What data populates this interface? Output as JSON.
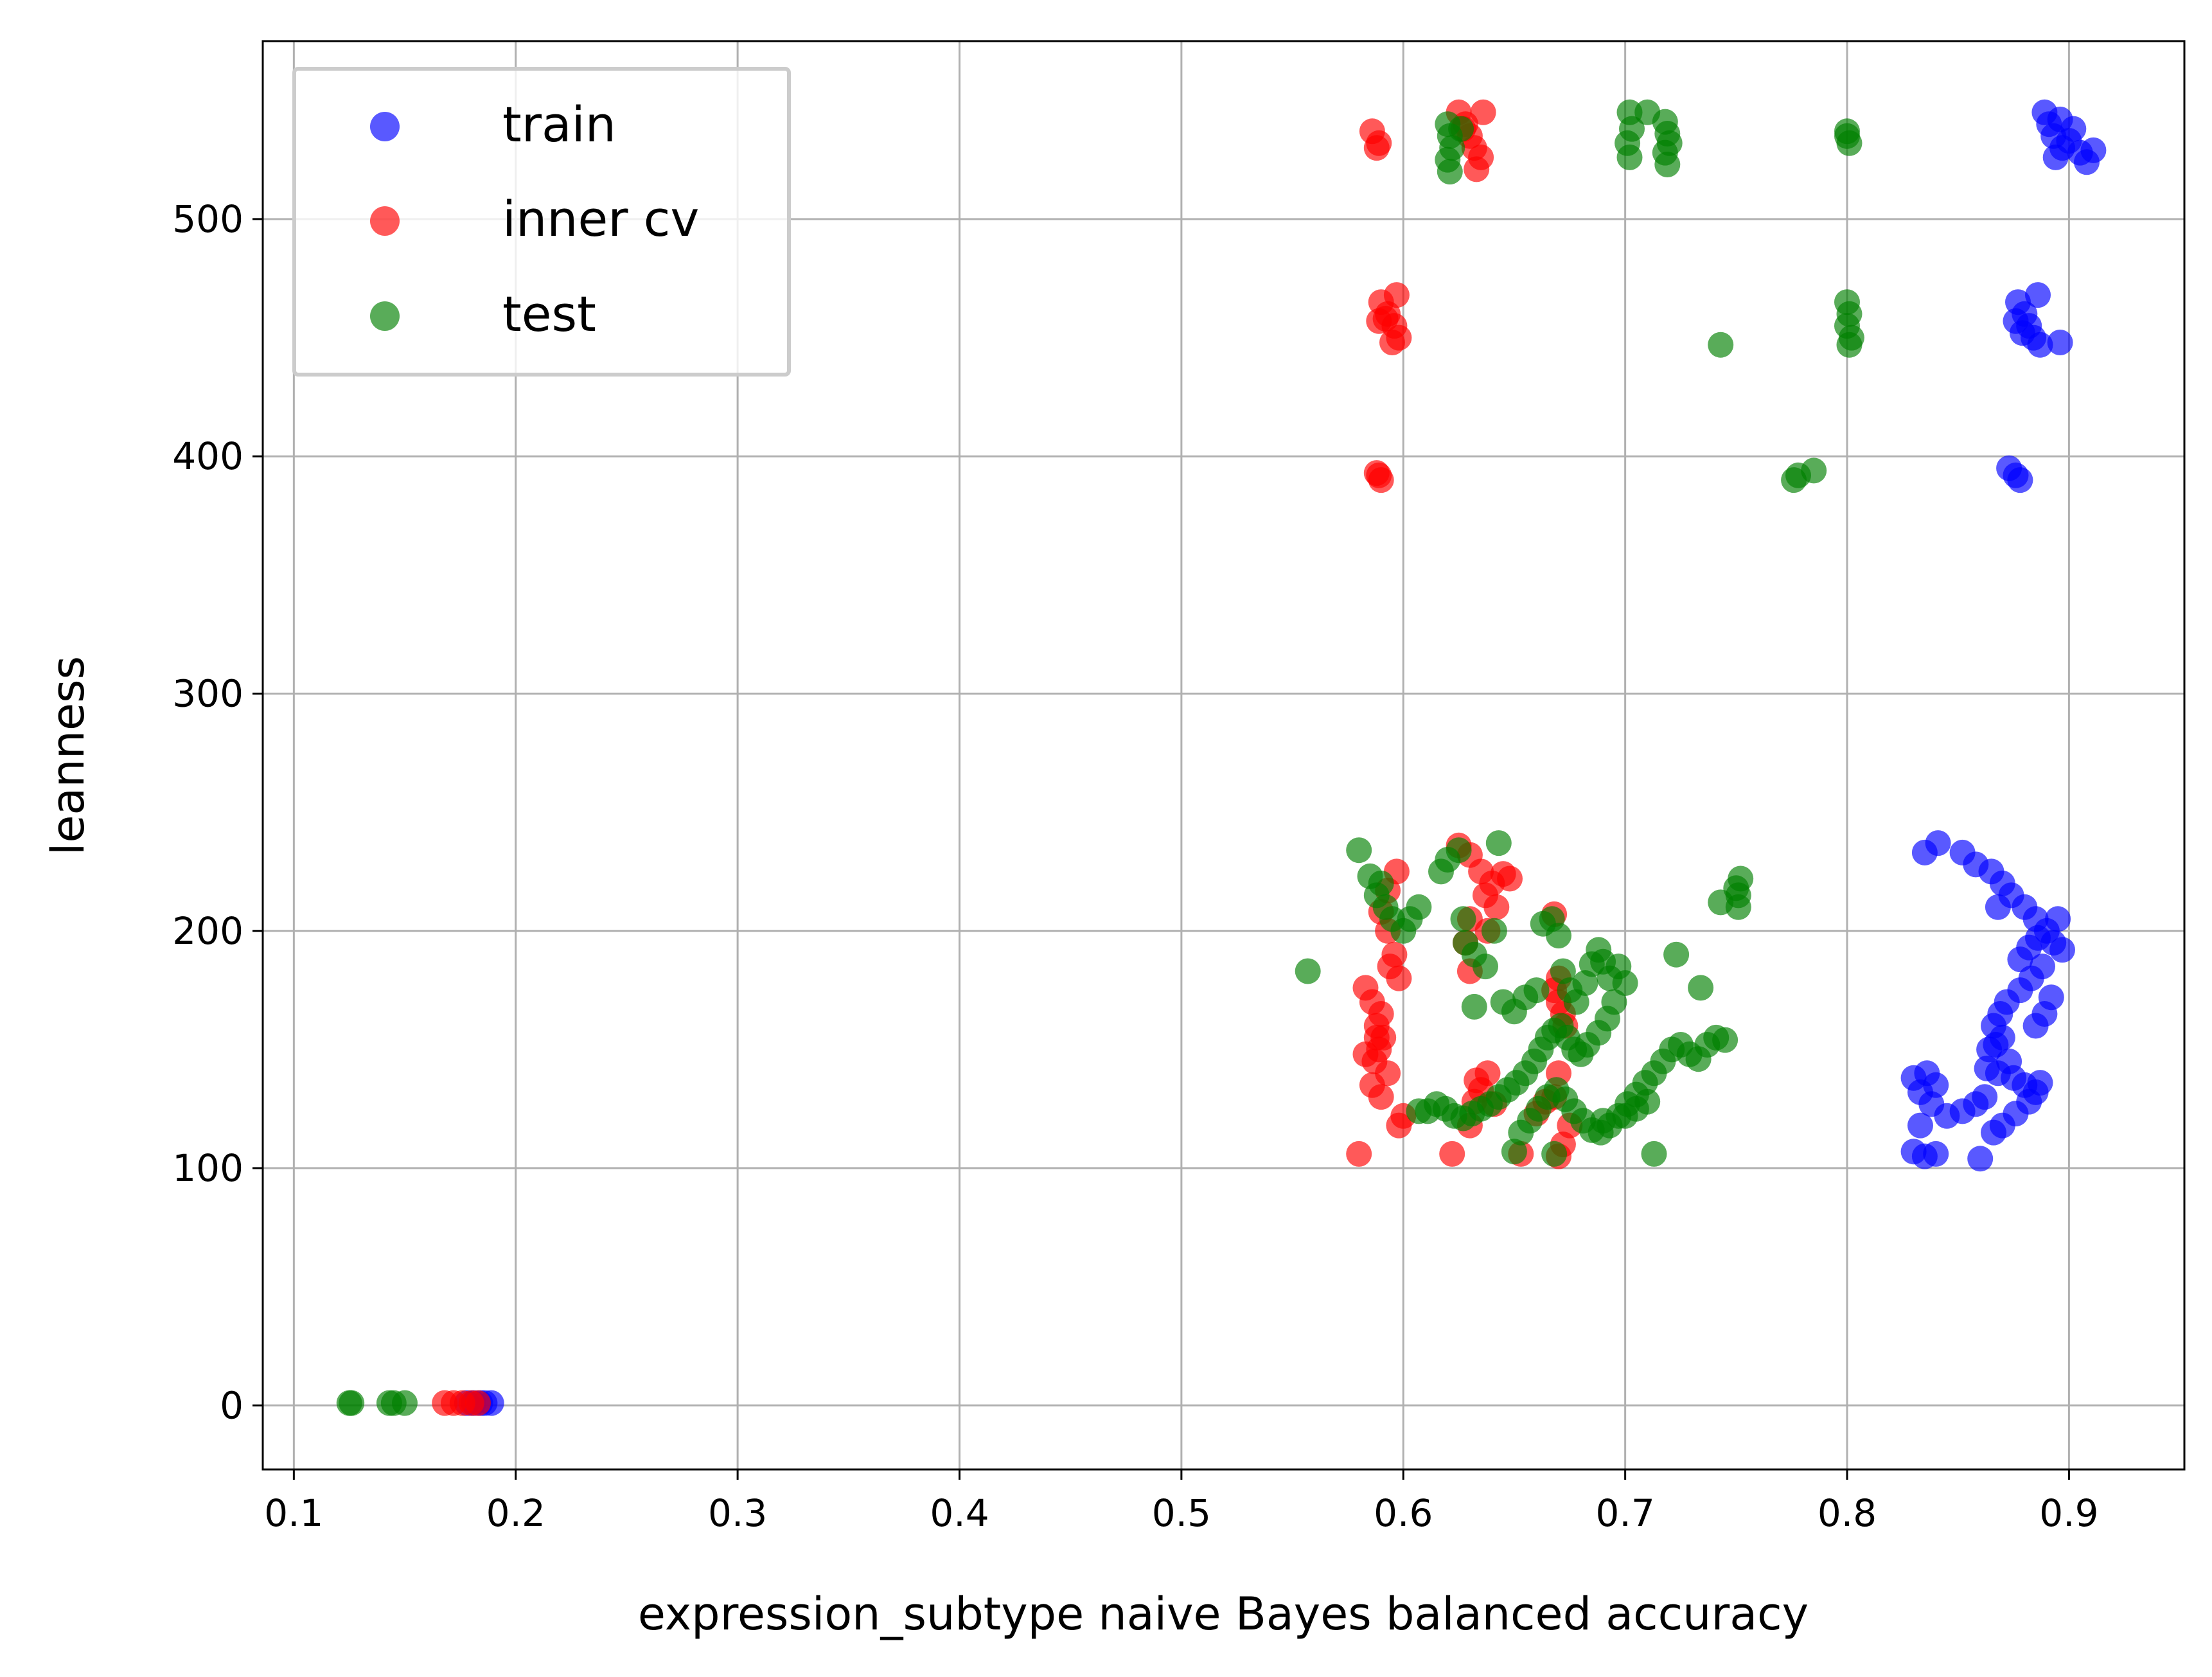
{
  "chart_data": {
    "type": "scatter",
    "title": "",
    "xlabel": "expression_subtype naive Bayes balanced accuracy",
    "ylabel": "leanness",
    "xlim": [
      0.086,
      0.952
    ],
    "ylim": [
      -27,
      575
    ],
    "xticks": [
      0.1,
      0.2,
      0.3,
      0.4,
      0.5,
      0.6,
      0.7,
      0.8,
      0.9
    ],
    "xtick_labels": [
      "0.1",
      "0.2",
      "0.3",
      "0.4",
      "0.5",
      "0.6",
      "0.7",
      "0.8",
      "0.9"
    ],
    "yticks": [
      0,
      100,
      200,
      300,
      400,
      500
    ],
    "ytick_labels": [
      "0",
      "100",
      "200",
      "300",
      "400",
      "500"
    ],
    "grid": true,
    "legend": "upper-left",
    "series": [
      {
        "name": "train",
        "color": "#0000ff",
        "points": [
          [
            0.181,
            1
          ],
          [
            0.184,
            1
          ],
          [
            0.186,
            1
          ],
          [
            0.189,
            1
          ],
          [
            0.178,
            1
          ],
          [
            0.889,
            545
          ],
          [
            0.891,
            540
          ],
          [
            0.893,
            535
          ],
          [
            0.897,
            530
          ],
          [
            0.902,
            538
          ],
          [
            0.905,
            528
          ],
          [
            0.908,
            524
          ],
          [
            0.911,
            529
          ],
          [
            0.896,
            542
          ],
          [
            0.9,
            533
          ],
          [
            0.894,
            526
          ],
          [
            0.877,
            465
          ],
          [
            0.88,
            460
          ],
          [
            0.882,
            455
          ],
          [
            0.884,
            450
          ],
          [
            0.887,
            447
          ],
          [
            0.879,
            452
          ],
          [
            0.886,
            468
          ],
          [
            0.896,
            448
          ],
          [
            0.876,
            457
          ],
          [
            0.873,
            395
          ],
          [
            0.876,
            392
          ],
          [
            0.878,
            390
          ],
          [
            0.835,
            233
          ],
          [
            0.841,
            237
          ],
          [
            0.852,
            233
          ],
          [
            0.858,
            228
          ],
          [
            0.865,
            225
          ],
          [
            0.87,
            220
          ],
          [
            0.874,
            215
          ],
          [
            0.868,
            210
          ],
          [
            0.88,
            210
          ],
          [
            0.885,
            205
          ],
          [
            0.89,
            200
          ],
          [
            0.893,
            195
          ],
          [
            0.897,
            192
          ],
          [
            0.895,
            205
          ],
          [
            0.888,
            185
          ],
          [
            0.883,
            180
          ],
          [
            0.878,
            175
          ],
          [
            0.892,
            172
          ],
          [
            0.889,
            165
          ],
          [
            0.885,
            160
          ],
          [
            0.872,
            170
          ],
          [
            0.869,
            165
          ],
          [
            0.866,
            160
          ],
          [
            0.87,
            155
          ],
          [
            0.864,
            150
          ],
          [
            0.873,
            145
          ],
          [
            0.868,
            140
          ],
          [
            0.875,
            138
          ],
          [
            0.88,
            135
          ],
          [
            0.885,
            132
          ],
          [
            0.862,
            130
          ],
          [
            0.858,
            127
          ],
          [
            0.852,
            124
          ],
          [
            0.845,
            122
          ],
          [
            0.838,
            127
          ],
          [
            0.833,
            132
          ],
          [
            0.83,
            138
          ],
          [
            0.836,
            140
          ],
          [
            0.84,
            135
          ],
          [
            0.833,
            118
          ],
          [
            0.83,
            107
          ],
          [
            0.835,
            105
          ],
          [
            0.84,
            106
          ],
          [
            0.86,
            104
          ],
          [
            0.866,
            115
          ],
          [
            0.87,
            118
          ],
          [
            0.876,
            123
          ],
          [
            0.882,
            128
          ],
          [
            0.887,
            136
          ],
          [
            0.863,
            142
          ],
          [
            0.867,
            152
          ],
          [
            0.878,
            188
          ],
          [
            0.882,
            193
          ],
          [
            0.886,
            197
          ]
        ]
      },
      {
        "name": "inner cv",
        "color": "#ff0000",
        "points": [
          [
            0.168,
            1
          ],
          [
            0.172,
            1
          ],
          [
            0.176,
            1
          ],
          [
            0.18,
            1
          ],
          [
            0.183,
            1
          ],
          [
            0.586,
            537
          ],
          [
            0.589,
            532
          ],
          [
            0.588,
            530
          ],
          [
            0.625,
            545
          ],
          [
            0.628,
            540
          ],
          [
            0.63,
            535
          ],
          [
            0.632,
            530
          ],
          [
            0.635,
            526
          ],
          [
            0.633,
            521
          ],
          [
            0.627,
            538
          ],
          [
            0.636,
            545
          ],
          [
            0.59,
            465
          ],
          [
            0.593,
            460
          ],
          [
            0.596,
            455
          ],
          [
            0.598,
            450
          ],
          [
            0.595,
            448
          ],
          [
            0.592,
            458
          ],
          [
            0.597,
            468
          ],
          [
            0.589,
            457
          ],
          [
            0.588,
            393
          ],
          [
            0.59,
            390
          ],
          [
            0.589,
            392
          ],
          [
            0.58,
            106
          ],
          [
            0.622,
            106
          ],
          [
            0.625,
            236
          ],
          [
            0.63,
            232
          ],
          [
            0.635,
            225
          ],
          [
            0.64,
            220
          ],
          [
            0.645,
            224
          ],
          [
            0.648,
            222
          ],
          [
            0.637,
            215
          ],
          [
            0.642,
            210
          ],
          [
            0.63,
            205
          ],
          [
            0.638,
            200
          ],
          [
            0.628,
            195
          ],
          [
            0.63,
            183
          ],
          [
            0.632,
            128
          ],
          [
            0.635,
            133
          ],
          [
            0.638,
            140
          ],
          [
            0.633,
            137
          ],
          [
            0.63,
            118
          ],
          [
            0.641,
            127
          ],
          [
            0.653,
            106
          ],
          [
            0.597,
            225
          ],
          [
            0.593,
            217
          ],
          [
            0.59,
            208
          ],
          [
            0.593,
            200
          ],
          [
            0.596,
            190
          ],
          [
            0.594,
            185
          ],
          [
            0.598,
            180
          ],
          [
            0.583,
            176
          ],
          [
            0.586,
            170
          ],
          [
            0.59,
            165
          ],
          [
            0.588,
            160
          ],
          [
            0.591,
            155
          ],
          [
            0.589,
            150
          ],
          [
            0.587,
            145
          ],
          [
            0.593,
            140
          ],
          [
            0.586,
            135
          ],
          [
            0.59,
            130
          ],
          [
            0.583,
            148
          ],
          [
            0.588,
            155
          ],
          [
            0.668,
            207
          ],
          [
            0.67,
            180
          ],
          [
            0.668,
            175
          ],
          [
            0.67,
            170
          ],
          [
            0.672,
            165
          ],
          [
            0.673,
            160
          ],
          [
            0.67,
            140
          ],
          [
            0.668,
            130
          ],
          [
            0.675,
            118
          ],
          [
            0.672,
            110
          ],
          [
            0.67,
            105
          ],
          [
            0.66,
            123
          ],
          [
            0.664,
            128
          ],
          [
            0.6,
            122
          ],
          [
            0.598,
            118
          ]
        ]
      },
      {
        "name": "test",
        "color": "#008000",
        "points": [
          [
            0.125,
            1
          ],
          [
            0.126,
            1
          ],
          [
            0.143,
            1
          ],
          [
            0.145,
            1
          ],
          [
            0.15,
            1
          ],
          [
            0.62,
            540
          ],
          [
            0.621,
            535
          ],
          [
            0.622,
            530
          ],
          [
            0.62,
            525
          ],
          [
            0.621,
            520
          ],
          [
            0.626,
            538
          ],
          [
            0.702,
            545
          ],
          [
            0.703,
            538
          ],
          [
            0.701,
            532
          ],
          [
            0.702,
            526
          ],
          [
            0.71,
            545
          ],
          [
            0.718,
            541
          ],
          [
            0.719,
            536
          ],
          [
            0.72,
            532
          ],
          [
            0.718,
            528
          ],
          [
            0.719,
            523
          ],
          [
            0.8,
            537
          ],
          [
            0.801,
            532
          ],
          [
            0.8,
            535
          ],
          [
            0.743,
            447
          ],
          [
            0.8,
            465
          ],
          [
            0.801,
            460
          ],
          [
            0.8,
            455
          ],
          [
            0.802,
            450
          ],
          [
            0.801,
            447
          ],
          [
            0.776,
            390
          ],
          [
            0.778,
            392
          ],
          [
            0.785,
            394
          ],
          [
            0.557,
            183
          ],
          [
            0.58,
            234
          ],
          [
            0.585,
            223
          ],
          [
            0.588,
            215
          ],
          [
            0.59,
            220
          ],
          [
            0.592,
            210
          ],
          [
            0.595,
            205
          ],
          [
            0.6,
            200
          ],
          [
            0.603,
            205
          ],
          [
            0.607,
            210
          ],
          [
            0.617,
            225
          ],
          [
            0.62,
            230
          ],
          [
            0.625,
            234
          ],
          [
            0.643,
            237
          ],
          [
            0.627,
            205
          ],
          [
            0.628,
            195
          ],
          [
            0.632,
            190
          ],
          [
            0.637,
            185
          ],
          [
            0.641,
            200
          ],
          [
            0.645,
            170
          ],
          [
            0.65,
            166
          ],
          [
            0.655,
            172
          ],
          [
            0.66,
            175
          ],
          [
            0.663,
            203
          ],
          [
            0.667,
            205
          ],
          [
            0.67,
            198
          ],
          [
            0.672,
            183
          ],
          [
            0.675,
            175
          ],
          [
            0.678,
            170
          ],
          [
            0.682,
            178
          ],
          [
            0.685,
            186
          ],
          [
            0.688,
            192
          ],
          [
            0.69,
            187
          ],
          [
            0.693,
            180
          ],
          [
            0.697,
            185
          ],
          [
            0.7,
            178
          ],
          [
            0.695,
            170
          ],
          [
            0.692,
            163
          ],
          [
            0.688,
            157
          ],
          [
            0.683,
            152
          ],
          [
            0.68,
            148
          ],
          [
            0.677,
            150
          ],
          [
            0.674,
            155
          ],
          [
            0.671,
            160
          ],
          [
            0.668,
            158
          ],
          [
            0.665,
            155
          ],
          [
            0.662,
            150
          ],
          [
            0.659,
            145
          ],
          [
            0.655,
            140
          ],
          [
            0.651,
            136
          ],
          [
            0.647,
            133
          ],
          [
            0.643,
            130
          ],
          [
            0.639,
            127
          ],
          [
            0.635,
            125
          ],
          [
            0.631,
            123
          ],
          [
            0.627,
            121
          ],
          [
            0.623,
            122
          ],
          [
            0.619,
            125
          ],
          [
            0.615,
            127
          ],
          [
            0.611,
            124
          ],
          [
            0.607,
            124
          ],
          [
            0.65,
            107
          ],
          [
            0.653,
            115
          ],
          [
            0.657,
            120
          ],
          [
            0.661,
            125
          ],
          [
            0.665,
            130
          ],
          [
            0.669,
            133
          ],
          [
            0.673,
            129
          ],
          [
            0.677,
            124
          ],
          [
            0.681,
            120
          ],
          [
            0.685,
            116
          ],
          [
            0.689,
            115
          ],
          [
            0.693,
            118
          ],
          [
            0.697,
            122
          ],
          [
            0.701,
            127
          ],
          [
            0.705,
            131
          ],
          [
            0.709,
            136
          ],
          [
            0.713,
            140
          ],
          [
            0.717,
            145
          ],
          [
            0.721,
            150
          ],
          [
            0.725,
            152
          ],
          [
            0.729,
            148
          ],
          [
            0.733,
            146
          ],
          [
            0.737,
            152
          ],
          [
            0.741,
            155
          ],
          [
            0.745,
            154
          ],
          [
            0.734,
            176
          ],
          [
            0.723,
            190
          ],
          [
            0.713,
            106
          ],
          [
            0.668,
            106
          ],
          [
            0.69,
            120
          ],
          [
            0.7,
            122
          ],
          [
            0.705,
            125
          ],
          [
            0.71,
            128
          ],
          [
            0.743,
            212
          ],
          [
            0.75,
            218
          ],
          [
            0.752,
            222
          ],
          [
            0.751,
            215
          ],
          [
            0.751,
            210
          ],
          [
            0.632,
            168
          ]
        ]
      }
    ]
  }
}
